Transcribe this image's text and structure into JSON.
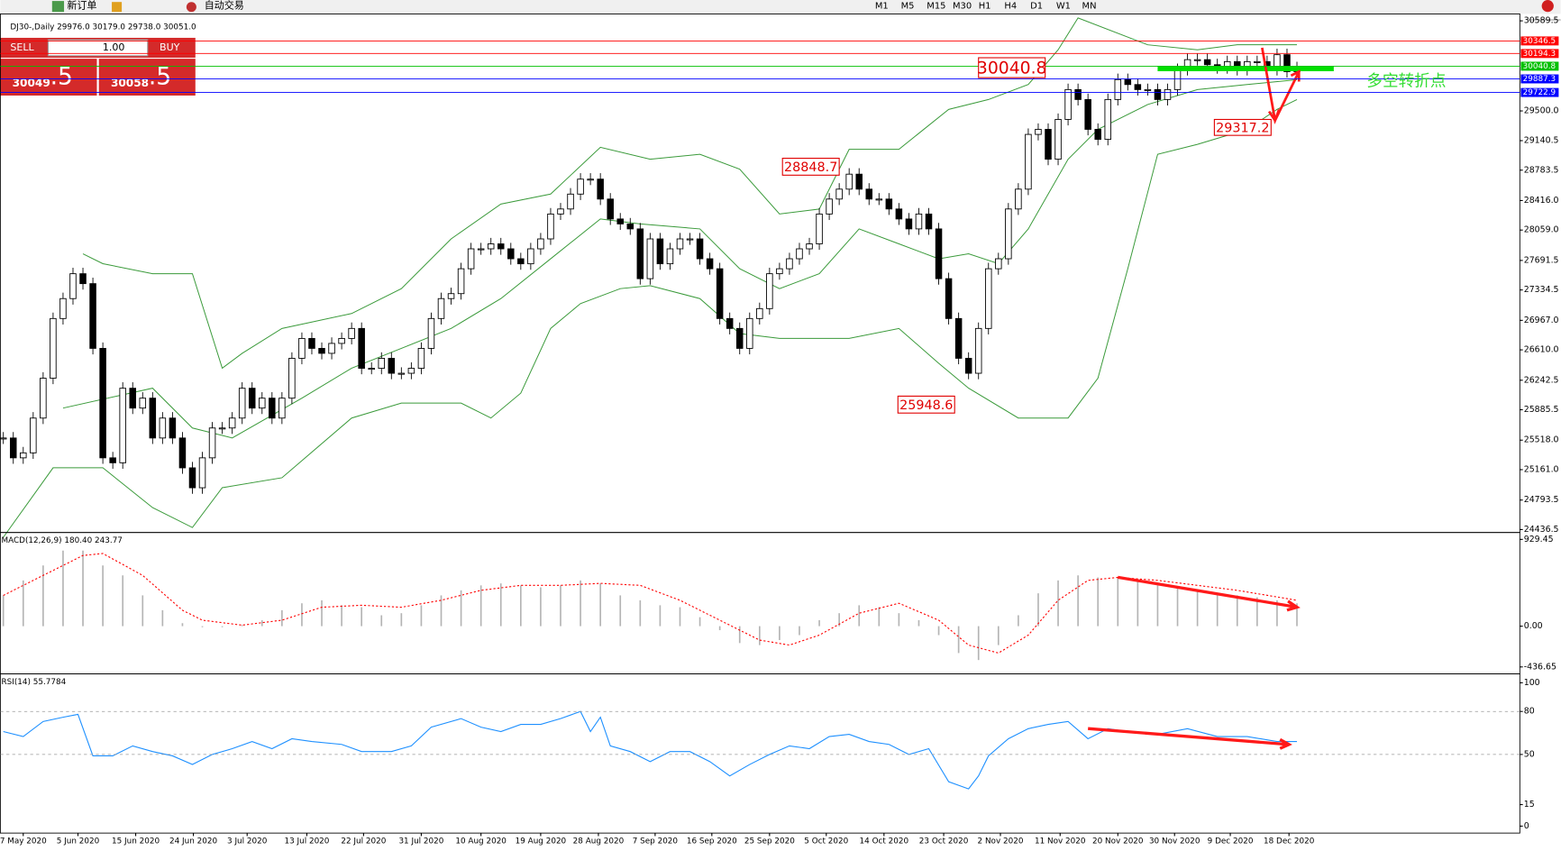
{
  "toolbar": {
    "new_order": "新订单",
    "auto_trade": "自动交易",
    "timeframes": [
      "M1",
      "M5",
      "M15",
      "M30",
      "H1",
      "H4",
      "D1",
      "W1",
      "MN"
    ]
  },
  "trade_panel": {
    "sell": "SELL",
    "buy": "BUY",
    "lots": "1.00",
    "sell_big": "30049",
    "sell_small": ".5",
    "buy_big": "30058",
    "buy_small": ".5"
  },
  "chart_data": [
    {
      "type": "candlestick",
      "title": "DJ30-,Daily  29976.0 30179.0 29738.0 30051.0",
      "values": [
        25544,
        25304,
        25364,
        25785,
        26267,
        26989,
        27230,
        27531,
        27411,
        26628,
        25304,
        25244,
        26146,
        25906,
        26026,
        25544,
        25785,
        25544,
        25183,
        24942,
        25304,
        25665,
        25665,
        25785,
        26146,
        25906,
        26026,
        25785,
        26026,
        26508,
        26748,
        26628,
        26568,
        26688,
        26748,
        26869,
        26387,
        26387,
        26508,
        26327,
        26327,
        26387,
        26628,
        26989,
        27230,
        27290,
        27591,
        27832,
        27832,
        27892,
        27832,
        27712,
        27651,
        27832,
        27952,
        28253,
        28314,
        28494,
        28675,
        28675,
        28434,
        28193,
        28133,
        28073,
        27471,
        27952,
        27651,
        27832,
        27952,
        27952,
        27712,
        27591,
        26989,
        26869,
        26628,
        26989,
        27109,
        27531,
        27591,
        27712,
        27832,
        27892,
        28253,
        28434,
        28554,
        28735,
        28554,
        28434,
        28434,
        28314,
        28193,
        28073,
        28253,
        28073,
        27471,
        26989,
        26508,
        26327,
        26869,
        27591,
        27712,
        28314,
        28554,
        29216,
        29277,
        28916,
        29397,
        29758,
        29638,
        29277,
        29156,
        29638,
        29879,
        29819,
        29758,
        29758,
        29638,
        29758,
        30000,
        30120,
        30120,
        30059,
        30023,
        30096,
        30000,
        30096,
        30096,
        30000,
        30180,
        29975,
        30023
      ],
      "bands": [
        {
          "color": "#3a9a3a",
          "x": [
            8,
            10,
            15,
            19,
            22,
            24,
            28,
            35,
            40,
            45,
            50,
            55,
            60,
            65,
            70,
            74,
            78,
            82,
            85,
            90,
            95,
            99,
            103,
            106,
            108,
            115,
            120,
            124,
            130
          ],
          "values": [
            27772,
            27652,
            27531,
            27531,
            26388,
            26568,
            26869,
            27050,
            27350,
            27952,
            28374,
            28494,
            29060,
            28916,
            28976,
            28795,
            28253,
            28314,
            29036,
            29036,
            29518,
            29638,
            29819,
            30240,
            30625,
            30300,
            30240,
            30300,
            30300
          ]
        },
        {
          "color": "#3a9a3a",
          "x": [
            6,
            15,
            19,
            23,
            30,
            35,
            40,
            45,
            50,
            55,
            60,
            64,
            70,
            74,
            78,
            82,
            86,
            90,
            94,
            97,
            100,
            103,
            107,
            110,
            115,
            120,
            125,
            130
          ],
          "values": [
            25906,
            26146,
            25665,
            25544,
            26026,
            26388,
            26628,
            26869,
            27230,
            27712,
            28193,
            28133,
            28073,
            27591,
            27350,
            27531,
            28073,
            27892,
            27712,
            27772,
            27652,
            28073,
            28916,
            29277,
            29578,
            29758,
            29819,
            29879
          ]
        },
        {
          "color": "#3a9a3a",
          "x": [
            0,
            5,
            10,
            15,
            19,
            22,
            28,
            35,
            40,
            46,
            49,
            52,
            55,
            58,
            62,
            65,
            70,
            74,
            78,
            85,
            90,
            94,
            97,
            102,
            107,
            110,
            113,
            116,
            120,
            125,
            128,
            130
          ],
          "values": [
            24343,
            25183,
            25183,
            24702,
            24461,
            24943,
            25063,
            25785,
            25966,
            25966,
            25785,
            26086,
            26869,
            27170,
            27350,
            27387,
            27230,
            26808,
            26748,
            26748,
            26869,
            26447,
            26146,
            25785,
            25785,
            26267,
            27591,
            28976,
            29096,
            29277,
            29518,
            29638
          ]
        }
      ],
      "levels": [
        {
          "value": 30346.5,
          "color": "#ff0000"
        },
        {
          "value": 30194.3,
          "color": "#ff0000"
        },
        {
          "value": 30040.8,
          "color": "#00c000"
        },
        {
          "value": 29887.3,
          "color": "#0000ff"
        },
        {
          "value": 29722.9,
          "color": "#0000ff"
        }
      ],
      "ylim": [
        24425,
        30661
      ],
      "yticks": [
        30589.5,
        {
          "value": 29500,
          "label": "29500.0"
        },
        29140.5,
        28783.5,
        {
          "value": 28416,
          "label": "28416.0"
        },
        {
          "value": 28059,
          "label": "28059.0"
        },
        27691.5,
        27334.5,
        {
          "value": 26967,
          "label": "26967.0"
        },
        {
          "value": 26610,
          "label": "26610.0"
        },
        26242.5,
        25885.5,
        {
          "value": 25518,
          "label": "25518.0"
        },
        {
          "value": 25161,
          "label": "25161.0"
        },
        24793.5,
        24436.5
      ],
      "annotations": [
        "30040.8",
        "28848.7",
        "25948.6",
        "29317.2",
        "多空转折点"
      ]
    },
    {
      "type": "macd",
      "title": "MACD(12,26,9) 180.40 243.77",
      "histogram": {
        "color": "#b4b4b4",
        "x": [
          0,
          2,
          4,
          6,
          8,
          10,
          12,
          14,
          16,
          18,
          20,
          22,
          24,
          26,
          28,
          30,
          32,
          34,
          36,
          38,
          40,
          42,
          44,
          46,
          48,
          50,
          52,
          54,
          56,
          58,
          60,
          62,
          64,
          66,
          68,
          70,
          72,
          74,
          76,
          78,
          80,
          82,
          84,
          86,
          88,
          90,
          92,
          94,
          96,
          98,
          100,
          102,
          104,
          106,
          108,
          110,
          112,
          114,
          116,
          118,
          120,
          122,
          124,
          126,
          128,
          130
        ],
        "values": [
          330,
          490,
          650,
          810,
          810,
          650,
          544,
          330,
          171,
          32,
          -11,
          -11,
          11,
          64,
          171,
          245,
          277,
          224,
          203,
          117,
          139,
          224,
          330,
          384,
          437,
          458,
          437,
          416,
          437,
          490,
          458,
          330,
          277,
          224,
          203,
          96,
          -43,
          -181,
          -203,
          -149,
          -96,
          64,
          139,
          224,
          203,
          139,
          64,
          -96,
          -288,
          -363,
          -203,
          117,
          352,
          490,
          544,
          522,
          522,
          490,
          437,
          405,
          373,
          352,
          330,
          309,
          277,
          245
        ]
      },
      "signal": {
        "color": "#ff0000",
        "x": [
          0,
          4,
          8,
          10,
          14,
          18,
          20,
          24,
          28,
          32,
          36,
          40,
          44,
          48,
          52,
          56,
          60,
          64,
          68,
          72,
          76,
          79,
          82,
          86,
          90,
          94,
          97,
          100,
          103,
          106,
          109,
          112,
          116,
          120,
          124,
          130
        ],
        "values": [
          330,
          544,
          757,
          778,
          544,
          171,
          64,
          11,
          64,
          203,
          224,
          203,
          277,
          384,
          437,
          437,
          458,
          437,
          277,
          64,
          -149,
          -203,
          -96,
          139,
          245,
          64,
          -203,
          -288,
          -96,
          277,
          490,
          522,
          490,
          437,
          384,
          277
        ]
      },
      "ylim": [
        -500,
        982
      ],
      "yticks": [
        929.45,
        {
          "value": 0,
          "label": "0.00"
        },
        -436.65
      ]
    },
    {
      "type": "rsi",
      "title": "RSI(14) 55.7784",
      "color": "#1e90ff",
      "x": [
        0,
        2,
        4,
        6,
        7.5,
        9,
        11,
        13,
        15,
        17,
        19,
        21,
        23,
        25,
        27,
        29,
        31,
        34,
        36,
        39,
        41,
        43,
        46,
        48,
        50,
        52,
        54,
        56,
        58,
        59,
        60,
        61,
        63,
        65,
        67,
        69,
        71,
        73,
        75,
        77,
        79,
        81,
        83,
        85,
        87,
        89,
        91,
        93,
        95,
        97,
        98,
        99,
        101,
        103,
        105,
        107,
        109,
        111,
        113,
        116,
        119,
        122,
        125,
        128,
        130
      ],
      "values": [
        66,
        62.5,
        73,
        76,
        78,
        49,
        49,
        56,
        52,
        49,
        43,
        50,
        54,
        59,
        54,
        61,
        59,
        57,
        52,
        52,
        56,
        69,
        75,
        69,
        66,
        71,
        71,
        75,
        80,
        66,
        76,
        56,
        52,
        45,
        52,
        52,
        45,
        35,
        43,
        50,
        56,
        54,
        62.5,
        64,
        59,
        57,
        50,
        54,
        31,
        26,
        35,
        49,
        61,
        68,
        71,
        73,
        61,
        68,
        66,
        64,
        68,
        62.5,
        62.5,
        59,
        59
      ],
      "ylim": [
        0,
        100
      ],
      "yticks": [
        100,
        80,
        50,
        15,
        0
      ],
      "dashed_levels": [
        80,
        50
      ],
      "xlim": [
        -0.3,
        152.4
      ],
      "xticks": [
        {
          "value": 2,
          "label": "7 May 2020"
        },
        {
          "value": 7.5,
          "label": "5 Jun 2020"
        },
        {
          "value": 13.3,
          "label": "15 Jun 2020"
        },
        {
          "value": 19.1,
          "label": "24 Jun 2020"
        },
        {
          "value": 24.5,
          "label": "3 Jul 2020"
        },
        {
          "value": 30.5,
          "label": "13 Jul 2020"
        },
        {
          "value": 36.2,
          "label": "22 Jul 2020"
        },
        {
          "value": 42,
          "label": "31 Jul 2020"
        },
        {
          "value": 48,
          "label": "10 Aug 2020"
        },
        {
          "value": 54,
          "label": "19 Aug 2020"
        },
        {
          "value": 59.8,
          "label": "28 Aug 2020"
        },
        {
          "value": 65.5,
          "label": "7 Sep 2020"
        },
        {
          "value": 71.2,
          "label": "16 Sep 2020"
        },
        {
          "value": 77,
          "label": "25 Sep 2020"
        },
        {
          "value": 82.7,
          "label": "5 Oct 2020"
        },
        {
          "value": 88.5,
          "label": "14 Oct 2020"
        },
        {
          "value": 94.5,
          "label": "23 Oct 2020"
        },
        {
          "value": 100.2,
          "label": "2 Nov 2020"
        },
        {
          "value": 106.2,
          "label": "11 Nov 2020"
        },
        {
          "value": 112,
          "label": "20 Nov 2020"
        },
        {
          "value": 117.7,
          "label": "30 Nov 2020"
        },
        {
          "value": 123.3,
          "label": "9 Dec 2020"
        },
        {
          "value": 129.2,
          "label": "18 Dec 2020"
        }
      ]
    }
  ]
}
